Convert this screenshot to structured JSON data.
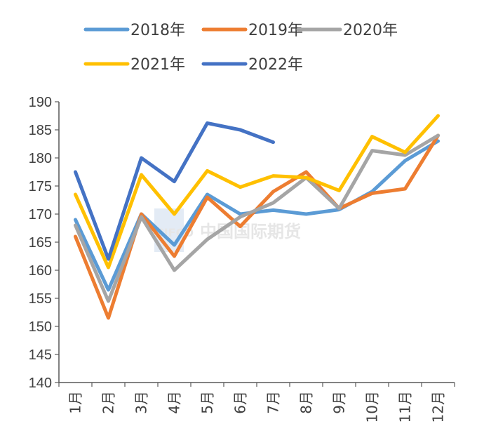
{
  "chart_data": {
    "type": "line",
    "categories": [
      "1月",
      "2月",
      "3月",
      "4月",
      "5月",
      "6月",
      "7月",
      "8月",
      "9月",
      "10月",
      "11月",
      "12月"
    ],
    "ylim": [
      140,
      190
    ],
    "yticks": [
      140,
      145,
      150,
      155,
      160,
      165,
      170,
      175,
      180,
      185,
      190
    ],
    "grid": false,
    "legend_position": "top",
    "series": [
      {
        "name": "2018年",
        "color": "#5B9BD5",
        "values": [
          169.0,
          156.5,
          170.0,
          164.5,
          173.5,
          170.0,
          170.7,
          170.0,
          170.8,
          174.0,
          179.5,
          183.0
        ]
      },
      {
        "name": "2019年",
        "color": "#ED7D31",
        "values": [
          166.0,
          151.5,
          170.0,
          162.5,
          173.0,
          167.8,
          174.0,
          177.5,
          171.0,
          173.7,
          174.5,
          184.0
        ]
      },
      {
        "name": "2020年",
        "color": "#A5A5A5",
        "values": [
          168.0,
          154.5,
          169.5,
          160.0,
          165.5,
          169.5,
          172.0,
          176.5,
          171.0,
          181.3,
          180.5,
          184.0
        ]
      },
      {
        "name": "2021年",
        "color": "#FFC000",
        "values": [
          173.5,
          160.5,
          177.0,
          170.0,
          177.7,
          174.8,
          176.8,
          176.5,
          174.2,
          183.8,
          181.0,
          187.5
        ]
      },
      {
        "name": "2022年",
        "color": "#4472C4",
        "values": [
          177.5,
          162.0,
          180.0,
          175.8,
          186.2,
          185.0,
          182.8,
          null,
          null,
          null,
          null,
          null
        ]
      }
    ]
  },
  "watermark": {
    "logo_text": "CIFCO",
    "text": "中国国际期货"
  }
}
